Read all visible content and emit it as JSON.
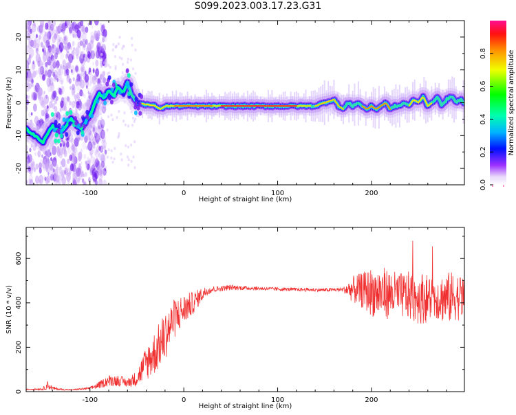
{
  "title": "S099.2023.003.17.23.G31",
  "chart_data": [
    {
      "type": "heatmap",
      "xlabel": "Height of straight line (km)",
      "ylabel": "Frequency (Hz)",
      "xlim": [
        -168,
        299
      ],
      "ylim": [
        -25,
        25
      ],
      "xticks": [
        -100,
        0,
        100,
        200
      ],
      "yticks": [
        -20,
        -10,
        0,
        10,
        20
      ],
      "colorbar": {
        "label": "Normalized spectral amplitude",
        "range": [
          0.0,
          1.0
        ],
        "ticks": [
          0.0,
          0.2,
          0.4,
          0.6,
          0.8
        ],
        "tick_labels": [
          "0.0",
          "0.2",
          "0.4",
          "0.6",
          "0.8"
        ]
      },
      "ridge": {
        "x": [
          -168,
          -150,
          -140,
          -130,
          -120,
          -110,
          -100,
          -95,
          -90,
          -85,
          -80,
          -75,
          -70,
          -65,
          -60,
          -55,
          -50,
          -40,
          -30,
          -25,
          -20,
          -10,
          0,
          20,
          40,
          60,
          80,
          100,
          120,
          140,
          150,
          160,
          165,
          170,
          175,
          180,
          185,
          190,
          195,
          200,
          205,
          210,
          215,
          220,
          225,
          230,
          235,
          240,
          245,
          250,
          255,
          260,
          265,
          270,
          275,
          280,
          285,
          290,
          295,
          299
        ],
        "y": [
          -8,
          -12,
          -7,
          -9,
          -5,
          -8,
          -4,
          0,
          3,
          1,
          4,
          2,
          5,
          3,
          6,
          2,
          0,
          -0.5,
          -1,
          -2,
          -1,
          -1,
          -1,
          -1,
          -1,
          -1,
          -1,
          -1,
          -1,
          -1,
          0,
          1,
          -1,
          -2,
          0,
          -1,
          0,
          -1,
          -2,
          -1,
          -2,
          -1,
          0,
          -2,
          -1,
          -1,
          0,
          -1,
          1,
          0,
          2,
          -1,
          0,
          2,
          -1,
          1,
          2,
          0,
          1,
          0
        ]
      }
    },
    {
      "type": "line",
      "xlabel": "Height of straight line (km)",
      "ylabel": "SNR (10 * v/v)",
      "xlim": [
        -168,
        299
      ],
      "ylim": [
        0,
        740
      ],
      "xticks": [
        -100,
        0,
        100,
        200
      ],
      "yticks": [
        0,
        200,
        400,
        600
      ],
      "color": "#f03030",
      "envelope": {
        "x": [
          -168,
          -150,
          -145,
          -140,
          -130,
          -120,
          -100,
          -90,
          -80,
          -70,
          -60,
          -50,
          -40,
          -30,
          -20,
          -10,
          0,
          10,
          20,
          25,
          30,
          40,
          50,
          60,
          80,
          100,
          120,
          150,
          170,
          180,
          190,
          200,
          210,
          220,
          230,
          240,
          250,
          260,
          270,
          280,
          290,
          299
        ],
        "y": [
          10,
          12,
          30,
          15,
          10,
          8,
          15,
          30,
          50,
          50,
          40,
          60,
          130,
          180,
          250,
          330,
          370,
          400,
          440,
          455,
          460,
          465,
          470,
          468,
          465,
          462,
          460,
          458,
          460,
          460,
          455,
          450,
          445,
          440,
          435,
          430,
          425,
          420,
          425,
          420,
          430,
          425
        ],
        "spread": [
          3,
          6,
          20,
          8,
          4,
          3,
          6,
          15,
          25,
          25,
          20,
          35,
          80,
          100,
          110,
          90,
          70,
          50,
          30,
          20,
          15,
          12,
          12,
          10,
          8,
          8,
          8,
          8,
          10,
          60,
          80,
          110,
          120,
          110,
          100,
          110,
          120,
          110,
          100,
          120,
          110,
          100
        ]
      }
    }
  ]
}
